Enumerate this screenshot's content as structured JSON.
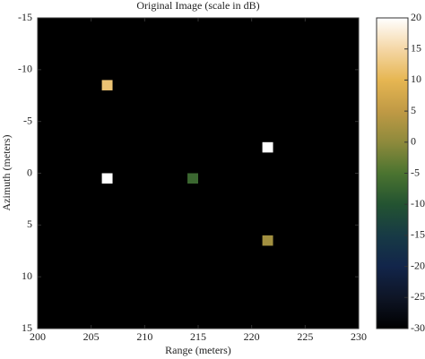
{
  "chart_data": {
    "type": "heatmap",
    "title": "Original Image (scale in dB)",
    "xlabel": "Range (meters)",
    "ylabel": "Azimuth (meters)",
    "x": [
      206.5,
      206.5,
      214.5,
      221.5,
      221.5
    ],
    "y": [
      -8.5,
      0.5,
      0.5,
      -2.5,
      6.5
    ],
    "values": [
      12,
      20,
      -7,
      20,
      2
    ],
    "xlim": [
      200,
      230
    ],
    "xticks": [
      200,
      205,
      210,
      215,
      220,
      225,
      230
    ],
    "ylim": [
      -15,
      15
    ],
    "y_reversed": true,
    "yticks": [
      -15,
      -10,
      -5,
      0,
      5,
      10,
      15
    ],
    "background": "#000000",
    "clim": [
      -30,
      20
    ],
    "cticks": [
      20,
      15,
      10,
      5,
      0,
      -5,
      -10,
      -15,
      -20,
      -25,
      -30
    ],
    "colormap": [
      "#000000",
      "#0e1526",
      "#12254a",
      "#173a45",
      "#235331",
      "#4b7430",
      "#8e8a3c",
      "#c09a45",
      "#e6b652",
      "#f5d7a6",
      "#ffffff"
    ]
  }
}
